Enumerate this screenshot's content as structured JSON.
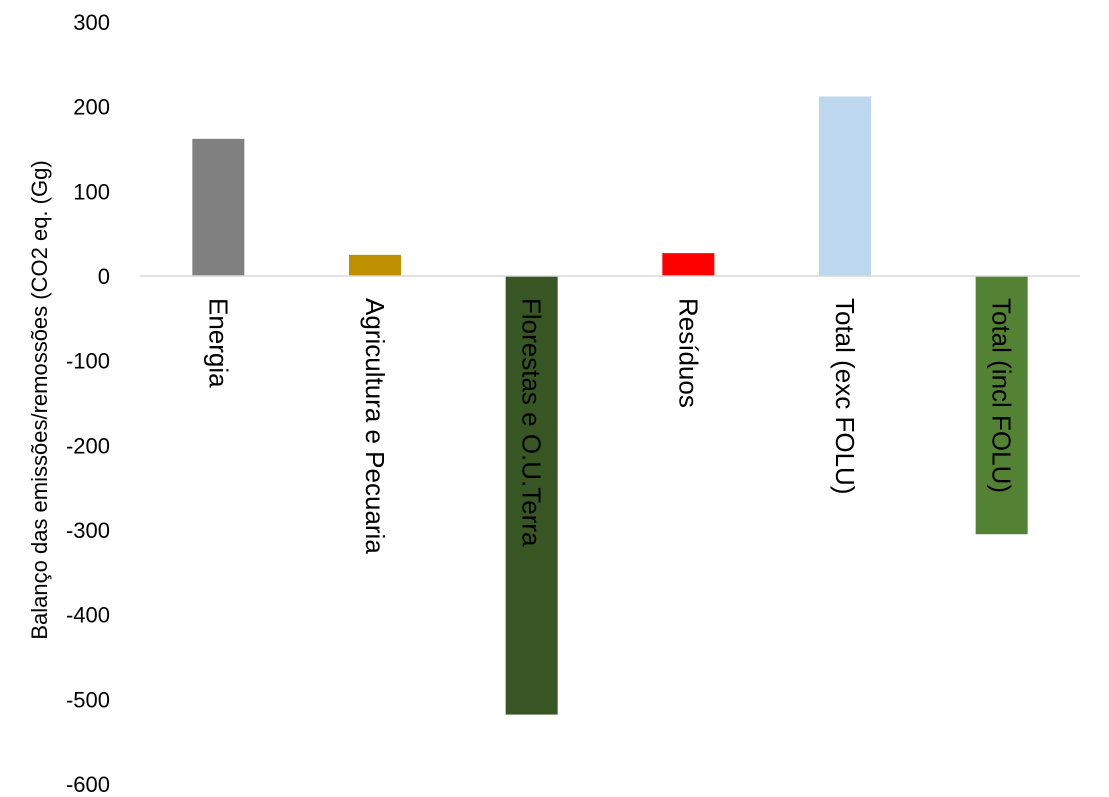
{
  "chart_data": {
    "type": "bar",
    "title": "",
    "xlabel": "",
    "ylabel": "Balanço das emissões/remossões (CO2 eq. (Gg)",
    "ylim": [
      -600,
      300
    ],
    "yticks": [
      300,
      200,
      100,
      0,
      -100,
      -200,
      -300,
      -400,
      -500,
      -600
    ],
    "categories": [
      "Energia",
      "Agricultura e Pecuaria",
      "Florestas e O.U.Terra",
      "Resíduos",
      "Total (exc FOLU)",
      "Total (incl FOLU)"
    ],
    "values": [
      162,
      25,
      -518,
      27,
      212,
      -305
    ],
    "colors": [
      "#808080",
      "#BF9000",
      "#375623",
      "#FF0000",
      "#BDD7EE",
      "#548235"
    ],
    "grid": false,
    "legend": "none"
  }
}
